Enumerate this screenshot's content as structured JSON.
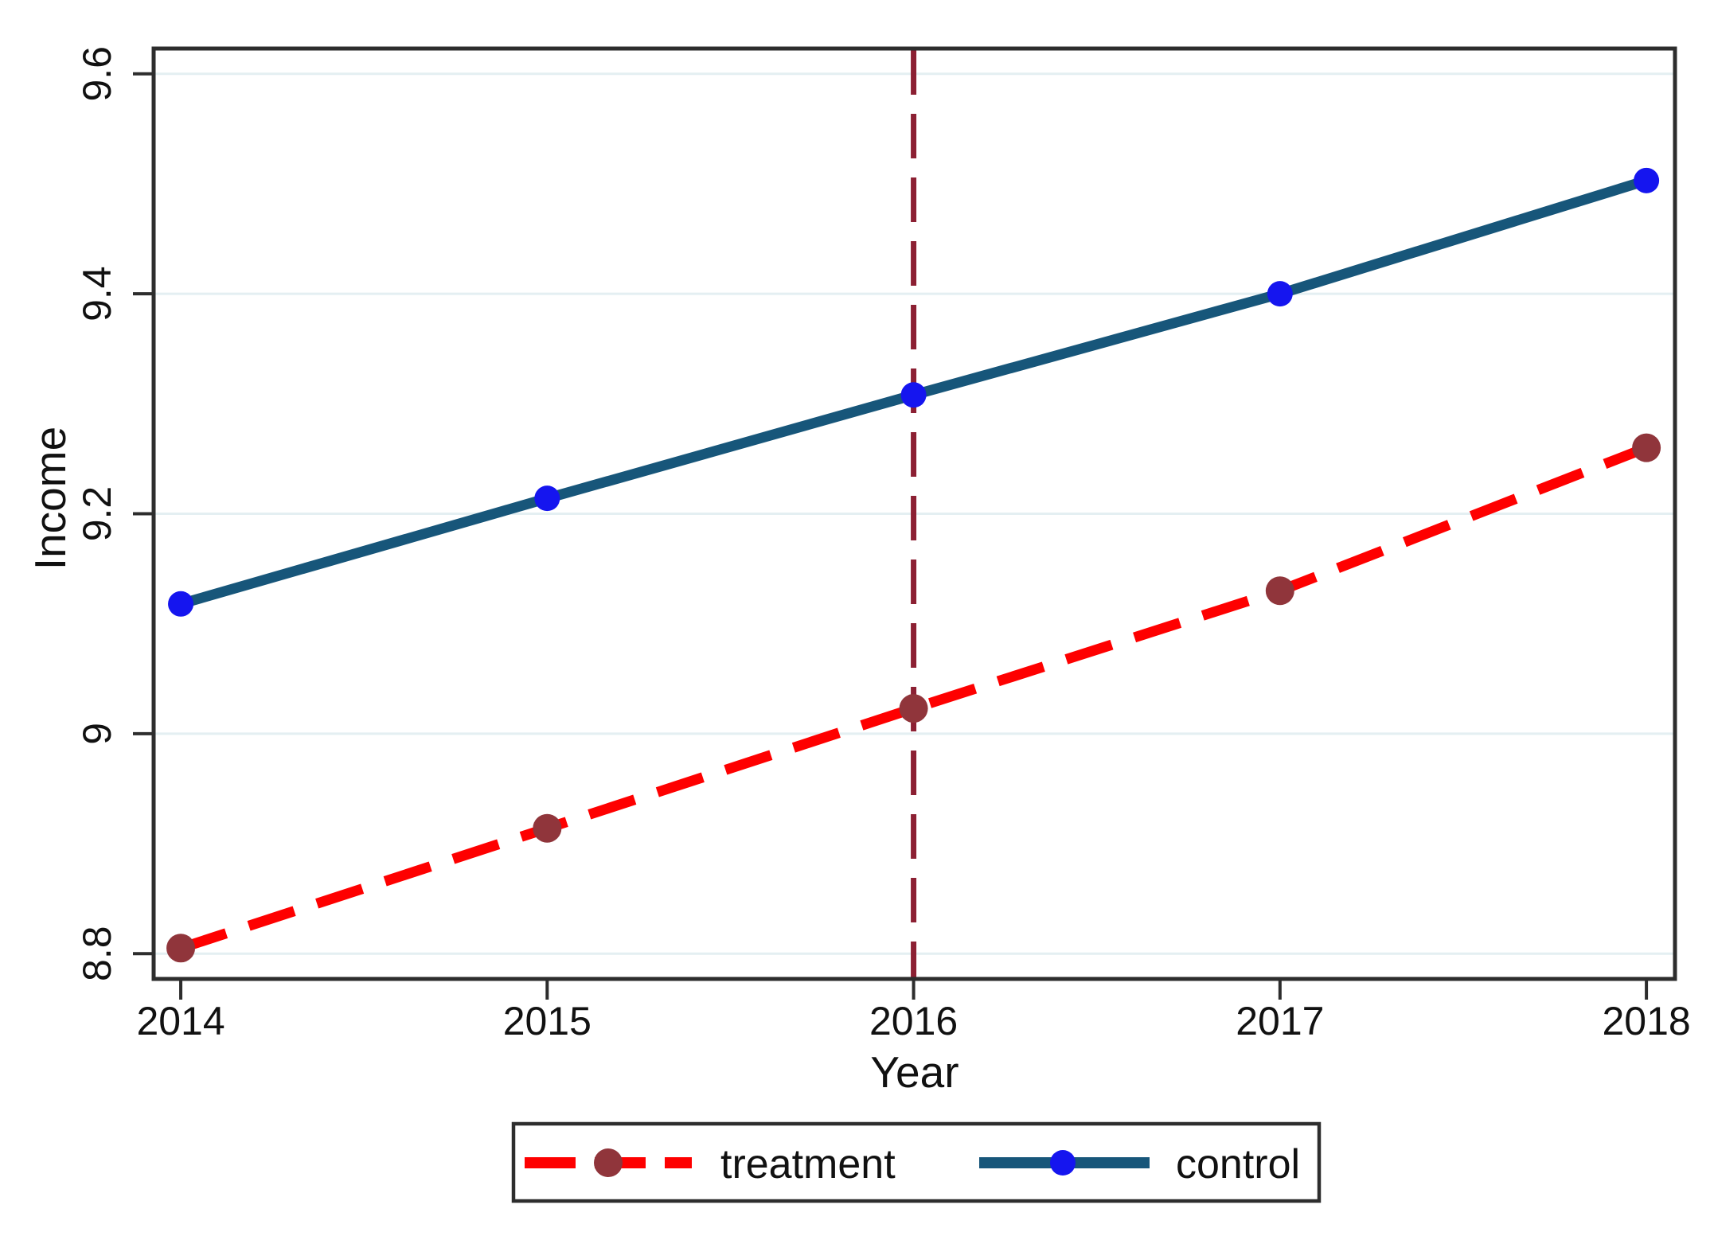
{
  "chart_data": {
    "type": "line",
    "title": "",
    "xlabel": "Year",
    "ylabel": "Income",
    "x": [
      2014,
      2015,
      2016,
      2017,
      2018
    ],
    "x_tick_labels": [
      "2014",
      "2015",
      "2016",
      "2017",
      "2018"
    ],
    "y_ticks": [
      8.8,
      9,
      9.2,
      9.4,
      9.6
    ],
    "y_tick_labels": [
      "8.8",
      "9",
      "9.2",
      "9.4",
      "9.6"
    ],
    "x_domain": [
      2013.926,
      2018.078
    ],
    "y_domain": [
      8.777,
      9.623
    ],
    "grid": true,
    "legend_position": "bottom-center",
    "series": [
      {
        "name": "treatment",
        "values": [
          8.805,
          8.914,
          9.023,
          9.13,
          9.26
        ],
        "line_color": "#fe0000",
        "marker_color": "#90353b",
        "line_style": "dashed"
      },
      {
        "name": "control",
        "values": [
          9.118,
          9.214,
          9.308,
          9.4,
          9.503
        ],
        "line_color": "#17567a",
        "marker_color": "#1515ef",
        "line_style": "solid"
      }
    ],
    "reference_line": {
      "x": 2016,
      "color": "#8c2033",
      "style": "dashed"
    },
    "style": {
      "grid_color": "#e4eff2",
      "frame_color": "#2d2d2d",
      "text_color": "#111111",
      "background": "#ffffff"
    }
  }
}
